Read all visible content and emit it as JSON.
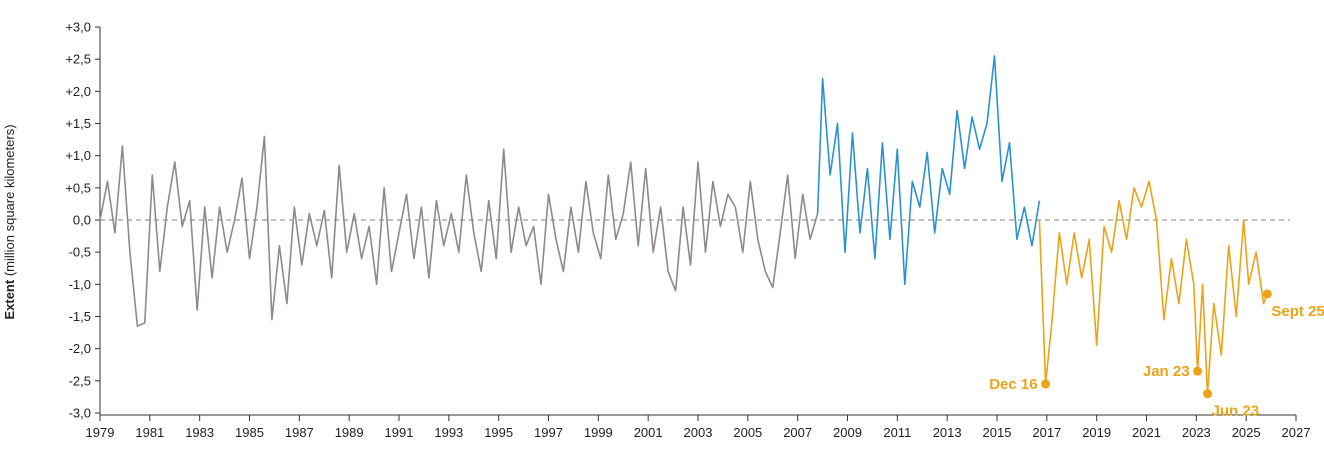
{
  "chart_data": {
    "type": "line",
    "ylabel_bold": "Extent",
    "ylabel_rest": " (million square kilometers)",
    "x_ticks": [
      "1979",
      "1981",
      "1983",
      "1985",
      "1987",
      "1989",
      "1991",
      "1993",
      "1995",
      "1997",
      "1999",
      "2001",
      "2003",
      "2005",
      "2007",
      "2009",
      "2011",
      "2013",
      "2015",
      "2017",
      "2019",
      "2021",
      "2023",
      "2025",
      "2027"
    ],
    "y_ticks": [
      "+3,0",
      "+2,5",
      "+2,0",
      "+1,5",
      "+1,0",
      "+0,5",
      "0,0",
      "-0,5",
      "-1,0",
      "-1,5",
      "-2,0",
      "-2,5",
      "-3,0"
    ],
    "xlim": [
      1979,
      2027
    ],
    "ylim": [
      -3.0,
      3.0
    ],
    "reference_line": 0,
    "colors": {
      "gray": "#8f8a89",
      "blue": "#2a93cf",
      "orange": "#eba318",
      "zero_line": "#999999"
    },
    "series": [
      {
        "color_key": "gray",
        "x": [
          1979.0,
          1979.3,
          1979.6,
          1979.9,
          1980.2,
          1980.5,
          1980.8,
          1981.1,
          1981.4,
          1981.7,
          1982.0,
          1982.3,
          1982.6,
          1982.9,
          1983.2,
          1983.5,
          1983.8,
          1984.1,
          1984.4,
          1984.7,
          1985.0,
          1985.3,
          1985.6,
          1985.9,
          1986.2,
          1986.5,
          1986.8,
          1987.1,
          1987.4,
          1987.7,
          1988.0,
          1988.3,
          1988.6,
          1988.9,
          1989.2,
          1989.5,
          1989.8,
          1990.1,
          1990.4,
          1990.7,
          1991.0,
          1991.3,
          1991.6,
          1991.9,
          1992.2,
          1992.5,
          1992.8,
          1993.1,
          1993.4,
          1993.7,
          1994.0,
          1994.3,
          1994.6,
          1994.9,
          1995.2,
          1995.5,
          1995.8,
          1996.1,
          1996.4,
          1996.7,
          1997.0,
          1997.3,
          1997.6,
          1997.9,
          1998.2,
          1998.5,
          1998.8,
          1999.1,
          1999.4,
          1999.7,
          2000.0,
          2000.3,
          2000.6,
          2000.9,
          2001.2,
          2001.5,
          2001.8,
          2002.1,
          2002.4,
          2002.7,
          2003.0,
          2003.3,
          2003.6,
          2003.9,
          2004.2,
          2004.5,
          2004.8,
          2005.1,
          2005.4,
          2005.7,
          2006.0,
          2006.3,
          2006.6,
          2006.9,
          2007.2,
          2007.5,
          2007.8
        ],
        "values": [
          0.0,
          0.6,
          -0.2,
          1.15,
          -0.5,
          -1.65,
          -1.6,
          0.7,
          -0.8,
          0.2,
          0.9,
          -0.1,
          0.3,
          -1.4,
          0.2,
          -0.9,
          0.2,
          -0.5,
          0.0,
          0.65,
          -0.6,
          0.2,
          1.3,
          -1.55,
          -0.4,
          -1.3,
          0.2,
          -0.7,
          0.1,
          -0.4,
          0.15,
          -0.9,
          0.85,
          -0.5,
          0.1,
          -0.6,
          -0.1,
          -1.0,
          0.5,
          -0.8,
          -0.2,
          0.4,
          -0.6,
          0.2,
          -0.9,
          0.3,
          -0.4,
          0.1,
          -0.5,
          0.7,
          -0.2,
          -0.8,
          0.3,
          -0.6,
          1.1,
          -0.5,
          0.2,
          -0.4,
          -0.1,
          -1.0,
          0.4,
          -0.3,
          -0.8,
          0.2,
          -0.5,
          0.6,
          -0.2,
          -0.6,
          0.7,
          -0.3,
          0.1,
          0.9,
          -0.4,
          0.8,
          -0.5,
          0.2,
          -0.8,
          -1.1,
          0.2,
          -0.7,
          0.9,
          -0.5,
          0.6,
          -0.1,
          0.4,
          0.2,
          -0.5,
          0.6,
          -0.3,
          -0.8,
          -1.05,
          -0.2,
          0.7,
          -0.6,
          0.4,
          -0.3,
          0.1
        ]
      },
      {
        "color_key": "blue",
        "x": [
          2007.8,
          2008.0,
          2008.3,
          2008.6,
          2008.9,
          2009.2,
          2009.5,
          2009.8,
          2010.1,
          2010.4,
          2010.7,
          2011.0,
          2011.3,
          2011.6,
          2011.9,
          2012.2,
          2012.5,
          2012.8,
          2013.1,
          2013.4,
          2013.7,
          2014.0,
          2014.3,
          2014.6,
          2014.9,
          2015.2,
          2015.5,
          2015.8,
          2016.1,
          2016.4,
          2016.7
        ],
        "values": [
          0.1,
          2.2,
          0.7,
          1.5,
          -0.5,
          1.35,
          -0.2,
          0.8,
          -0.6,
          1.2,
          -0.3,
          1.1,
          -1.0,
          0.6,
          0.2,
          1.05,
          -0.2,
          0.8,
          0.4,
          1.7,
          0.8,
          1.6,
          1.1,
          1.5,
          2.55,
          0.6,
          1.2,
          -0.3,
          0.2,
          -0.4,
          0.3
        ]
      },
      {
        "color_key": "orange",
        "x": [
          2016.7,
          2016.95,
          2017.2,
          2017.5,
          2017.8,
          2018.1,
          2018.4,
          2018.7,
          2019.0,
          2019.3,
          2019.6,
          2019.9,
          2020.2,
          2020.5,
          2020.8,
          2021.1,
          2021.4,
          2021.7,
          2022.0,
          2022.3,
          2022.6,
          2022.9,
          2023.05,
          2023.25,
          2023.45,
          2023.7,
          2024.0,
          2024.3,
          2024.6,
          2024.9,
          2025.1,
          2025.4,
          2025.7,
          2025.85
        ],
        "values": [
          0.0,
          -2.55,
          -1.6,
          -0.2,
          -1.0,
          -0.2,
          -0.9,
          -0.3,
          -1.95,
          -0.1,
          -0.5,
          0.3,
          -0.3,
          0.5,
          0.2,
          0.6,
          0.0,
          -1.55,
          -0.6,
          -1.3,
          -0.3,
          -1.0,
          -2.35,
          -1.0,
          -2.7,
          -1.3,
          -2.1,
          -0.4,
          -1.5,
          0.0,
          -1.0,
          -0.5,
          -1.3,
          -1.15
        ]
      }
    ],
    "annotations": [
      {
        "label": "Dec 16",
        "x": 2016.95,
        "y": -2.55,
        "anchor": "end"
      },
      {
        "label": "Jan 23",
        "x": 2023.05,
        "y": -2.35,
        "anchor": "end"
      },
      {
        "label": "Jun 23",
        "x": 2023.45,
        "y": -2.7,
        "anchor": "start-below"
      },
      {
        "label": "Sept 25",
        "x": 2025.85,
        "y": -1.15,
        "anchor": "start-below"
      }
    ]
  }
}
